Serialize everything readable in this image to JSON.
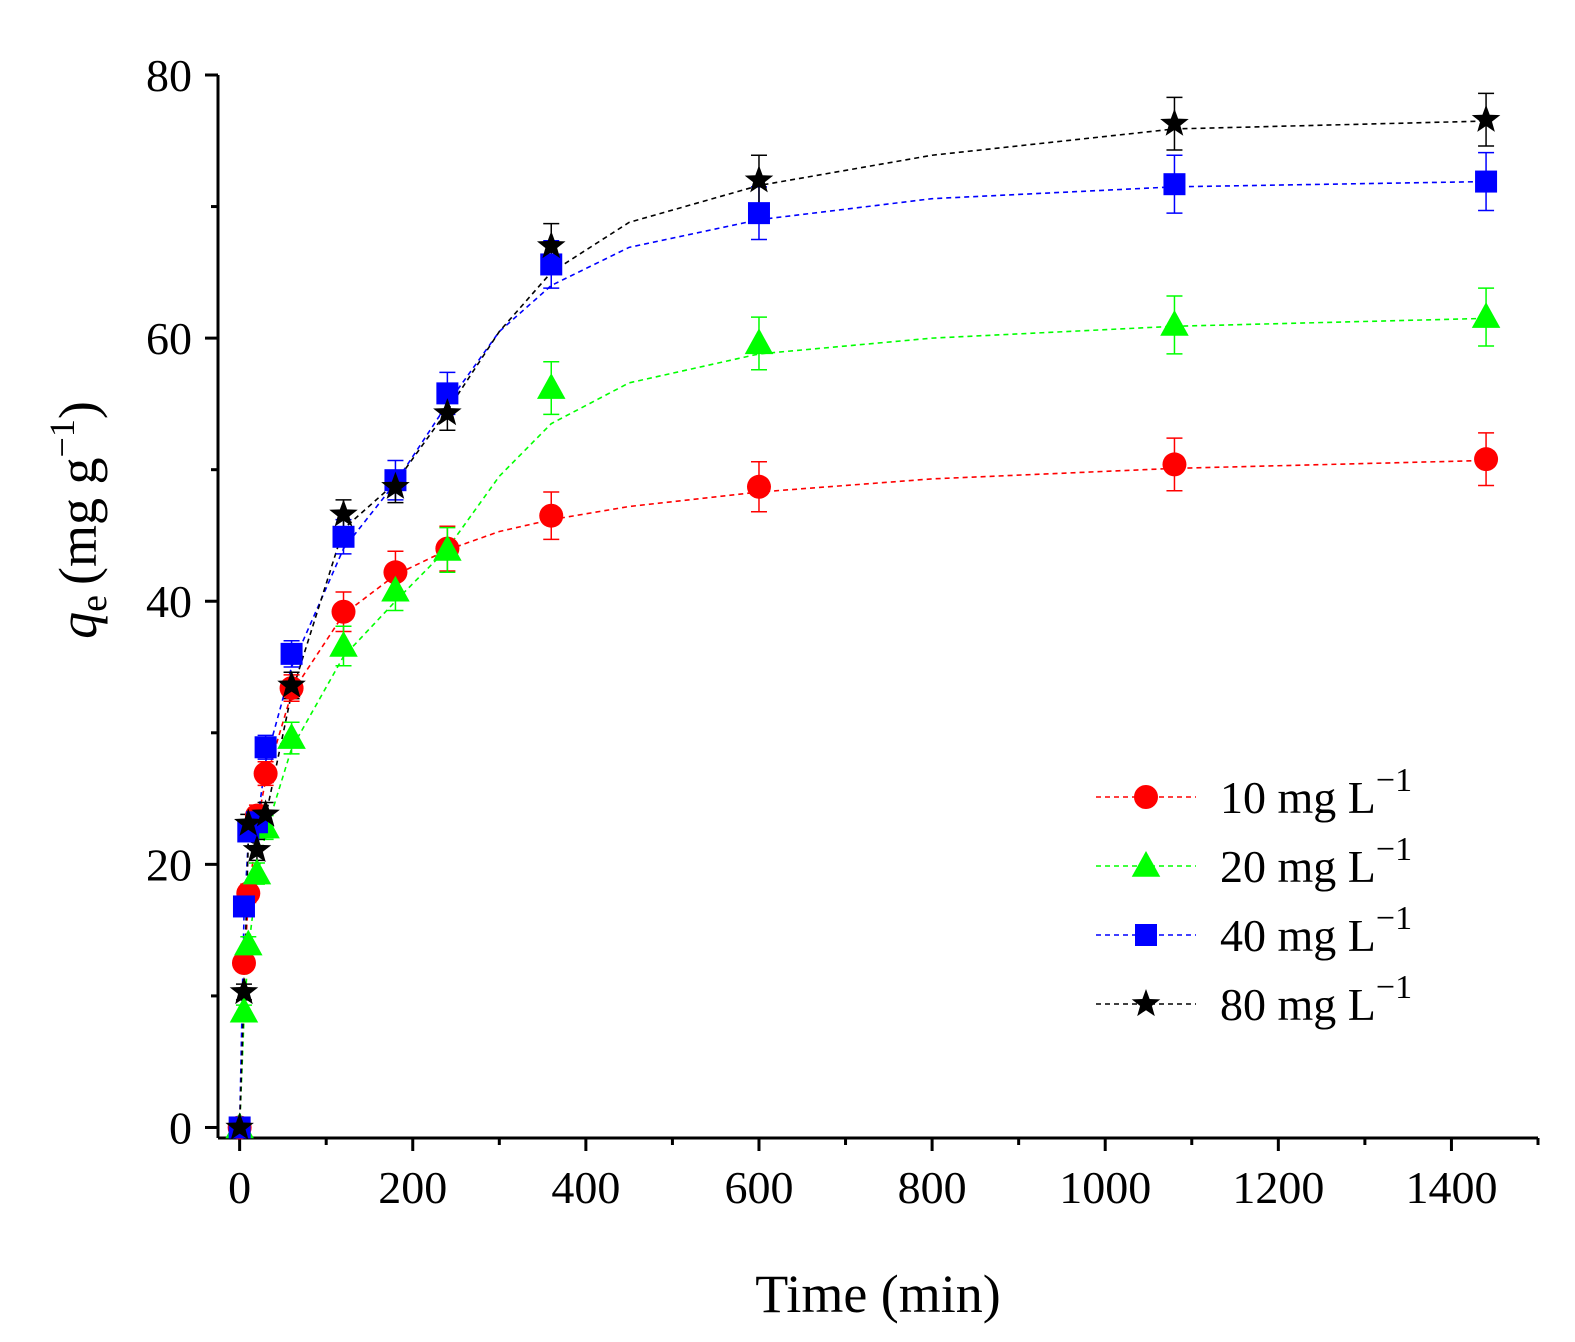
{
  "chart_data": {
    "type": "scatter",
    "xlabel": "Time (min)",
    "ylabel": {
      "symbol": "q",
      "subscript": "e",
      "units": "(mg g",
      "exponent": "−1",
      "close": ")"
    },
    "xlim": [
      -25,
      1500
    ],
    "ylim": [
      -0.8,
      80
    ],
    "xticks": [
      0,
      200,
      400,
      600,
      800,
      1000,
      1200,
      1400
    ],
    "yticks": [
      0,
      20,
      40,
      60,
      80
    ],
    "x": [
      0,
      5,
      10,
      20,
      30,
      60,
      120,
      180,
      240,
      360,
      600,
      1080,
      1440
    ],
    "series": [
      {
        "name": "10 mg L",
        "label_exponent": "−1",
        "color": "#ff0000",
        "marker": "circle",
        "values": [
          0,
          12.5,
          17.8,
          23.7,
          26.9,
          33.4,
          39.2,
          42.2,
          44.0,
          46.5,
          48.7,
          50.4,
          50.8
        ],
        "errors": [
          0,
          0.6,
          0.7,
          0.8,
          0.9,
          1.0,
          1.5,
          1.6,
          1.7,
          1.8,
          1.9,
          2.0,
          2.0
        ],
        "fit": [
          [
            0,
            0
          ],
          [
            5,
            11.8
          ],
          [
            10,
            17.2
          ],
          [
            20,
            23.0
          ],
          [
            30,
            26.4
          ],
          [
            60,
            33.0
          ],
          [
            120,
            39.0
          ],
          [
            180,
            42.0
          ],
          [
            240,
            43.9
          ],
          [
            300,
            45.3
          ],
          [
            360,
            46.2
          ],
          [
            450,
            47.2
          ],
          [
            600,
            48.3
          ],
          [
            800,
            49.3
          ],
          [
            1080,
            50.1
          ],
          [
            1440,
            50.7
          ]
        ]
      },
      {
        "name": "20 mg L",
        "label_exponent": "−1",
        "color": "#00ff00",
        "marker": "triangle",
        "values": [
          0,
          8.8,
          13.9,
          19.3,
          22.8,
          29.6,
          36.6,
          40.8,
          43.9,
          56.2,
          59.6,
          61.0,
          61.6
        ],
        "errors": [
          0,
          0.5,
          0.6,
          0.8,
          0.9,
          1.2,
          1.5,
          1.5,
          1.7,
          2.0,
          2.0,
          2.2,
          2.2
        ],
        "fit": [
          [
            0,
            0
          ],
          [
            5,
            8.2
          ],
          [
            10,
            13.5
          ],
          [
            20,
            18.8
          ],
          [
            30,
            22.4
          ],
          [
            60,
            28.8
          ],
          [
            120,
            35.8
          ],
          [
            180,
            40.0
          ],
          [
            240,
            44.0
          ],
          [
            300,
            49.5
          ],
          [
            360,
            53.5
          ],
          [
            450,
            56.6
          ],
          [
            600,
            58.8
          ],
          [
            800,
            60.0
          ],
          [
            1080,
            60.9
          ],
          [
            1440,
            61.5
          ]
        ]
      },
      {
        "name": "40 mg L",
        "label_exponent": "−1",
        "color": "#0000ff",
        "marker": "square",
        "values": [
          0,
          16.8,
          22.5,
          23.2,
          28.9,
          36.0,
          44.9,
          49.2,
          55.8,
          65.6,
          69.5,
          71.7,
          71.9
        ],
        "errors": [
          0,
          0.6,
          0.7,
          0.8,
          0.9,
          1.0,
          1.3,
          1.5,
          1.6,
          1.8,
          2.0,
          2.2,
          2.2
        ],
        "fit": [
          [
            0,
            0
          ],
          [
            5,
            16.0
          ],
          [
            10,
            21.8
          ],
          [
            20,
            23.0
          ],
          [
            30,
            27.8
          ],
          [
            60,
            35.0
          ],
          [
            120,
            44.0
          ],
          [
            180,
            49.0
          ],
          [
            240,
            55.0
          ],
          [
            300,
            60.5
          ],
          [
            360,
            64.0
          ],
          [
            450,
            66.9
          ],
          [
            600,
            69.0
          ],
          [
            800,
            70.6
          ],
          [
            1080,
            71.5
          ],
          [
            1440,
            71.9
          ]
        ]
      },
      {
        "name": "80 mg L",
        "label_exponent": "−1",
        "color": "#000000",
        "marker": "star",
        "values": [
          0,
          10.3,
          23.1,
          21.1,
          23.8,
          33.6,
          46.6,
          48.7,
          54.3,
          67.0,
          72.0,
          76.3,
          76.6
        ],
        "errors": [
          0,
          0.6,
          0.7,
          0.8,
          0.9,
          1.0,
          1.1,
          1.2,
          1.3,
          1.7,
          1.9,
          2.0,
          2.0
        ],
        "fit": [
          [
            0,
            0
          ],
          [
            5,
            10.0
          ],
          [
            10,
            21.8
          ],
          [
            20,
            21.5
          ],
          [
            30,
            23.6
          ],
          [
            60,
            33.0
          ],
          [
            120,
            45.5
          ],
          [
            180,
            49.0
          ],
          [
            240,
            54.5
          ],
          [
            300,
            60.5
          ],
          [
            360,
            65.0
          ],
          [
            450,
            68.8
          ],
          [
            600,
            71.6
          ],
          [
            800,
            73.9
          ],
          [
            1080,
            75.9
          ],
          [
            1440,
            76.5
          ]
        ]
      }
    ],
    "legend": {
      "position": "center-right"
    }
  }
}
